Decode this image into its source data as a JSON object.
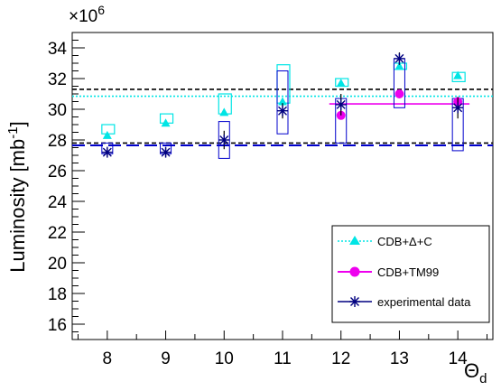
{
  "chart_data": {
    "type": "scatter",
    "x_axis": {
      "title_main": "Θ",
      "title_sub": "d",
      "min": 7.4,
      "max": 14.6,
      "ticks": [
        8,
        9,
        10,
        11,
        12,
        13,
        14
      ]
    },
    "y_axis": {
      "title_main": "Luminosity [mb",
      "title_sup": "-1",
      "title_end": "]",
      "min": 15,
      "max": 35,
      "ticks": [
        16,
        18,
        20,
        22,
        24,
        26,
        28,
        30,
        32,
        34
      ],
      "exponent_base": "×10",
      "exponent_power": "6"
    },
    "legend": {
      "position": "bottom-right",
      "entries": [
        {
          "label": "CDB+Δ+C",
          "color": "#00e5e5"
        },
        {
          "label": "CDB+TM99",
          "color": "#ee00ee"
        },
        {
          "label": "experimental data",
          "color": "#000080"
        }
      ]
    },
    "series": [
      {
        "name": "CDB+Δ+C",
        "marker": "triangle",
        "color": "#00e5e5",
        "x": [
          8,
          9,
          10,
          11,
          12,
          13,
          14
        ],
        "y": [
          28.3,
          29.1,
          29.8,
          30.5,
          31.7,
          32.8,
          32.2
        ],
        "box_bottom": [
          28.4,
          29.1,
          29.7,
          30.4,
          31.5,
          32.6,
          31.8
        ],
        "box_top": [
          29.0,
          29.7,
          31.0,
          32.9,
          32.0,
          33.0,
          32.4
        ]
      },
      {
        "name": "CDB+TM99",
        "marker": "circle",
        "color": "#ee00ee",
        "x": [
          12,
          13,
          14
        ],
        "y": [
          29.6,
          31.0,
          30.5
        ]
      },
      {
        "name": "experimental data",
        "marker": "star",
        "color": "#000080",
        "x": [
          8,
          9,
          10,
          11,
          12,
          13,
          14
        ],
        "y": [
          27.2,
          27.2,
          28.0,
          29.9,
          30.3,
          33.3,
          30.1
        ],
        "err": [
          0.3,
          0.3,
          0.6,
          0.5,
          0.7,
          0.4,
          0.7
        ],
        "box_bottom": [
          27.1,
          27.1,
          26.8,
          28.4,
          27.8,
          30.1,
          27.3
        ],
        "box_top": [
          27.8,
          27.8,
          29.2,
          32.5,
          30.7,
          33.3,
          30.7
        ]
      }
    ],
    "reference_lines": [
      {
        "style": "dotted",
        "color": "#00e5e5",
        "y": 30.85,
        "x_from": 7.4,
        "x_to": 14.6
      },
      {
        "style": "dashed",
        "color": "#000000",
        "y": 31.3,
        "x_from": 7.4,
        "x_to": 14.6
      },
      {
        "style": "dashed",
        "color": "#000000",
        "y": 27.8,
        "x_from": 7.4,
        "x_to": 14.6
      },
      {
        "style": "longdash",
        "color": "#0000cc",
        "y": 27.65,
        "x_from": 7.4,
        "x_to": 14.6
      },
      {
        "style": "solid",
        "color": "#ee00ee",
        "y": 30.35,
        "x_from": 11.8,
        "x_to": 14.2
      }
    ]
  }
}
